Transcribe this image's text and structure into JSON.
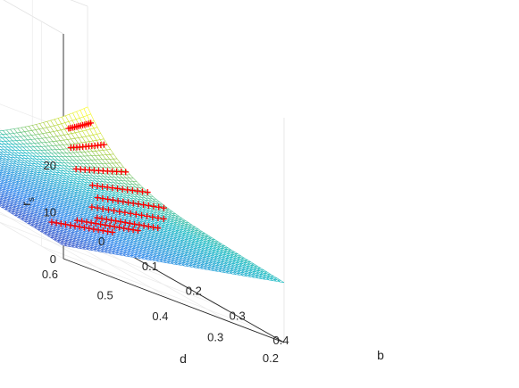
{
  "chart_data": {
    "type": "surface3d",
    "title": "",
    "xlabel": "d",
    "ylabel": "b",
    "zlabel_main": "r",
    "zlabel_sub": "s",
    "x_ticks": [
      "0.2",
      "0.3",
      "0.4",
      "0.5",
      "0.6"
    ],
    "x_tick_values": [
      0.2,
      0.3,
      0.4,
      0.5,
      0.6
    ],
    "y_ticks": [
      "0",
      "0.1",
      "0.2",
      "0.3",
      "0.4"
    ],
    "y_tick_values": [
      0,
      0.1,
      0.2,
      0.3,
      0.4
    ],
    "z_ticks": [
      "0",
      "10",
      "20"
    ],
    "z_tick_values": [
      0,
      10,
      20
    ],
    "xlim": [
      0.2,
      0.6
    ],
    "ylim": [
      0,
      0.45
    ],
    "zlim": [
      0,
      25
    ],
    "grid": true,
    "surface_colormap": "parula-like (blue low, yellow high)",
    "marker": {
      "symbol": "+",
      "color": "#ff0000"
    },
    "marker_series": [
      {
        "x_start": 0.55,
        "x_end": 0.44,
        "y": 0.36,
        "count": 14
      },
      {
        "x_start": 0.48,
        "x_end": 0.37,
        "y": 0.33,
        "count": 14
      },
      {
        "x_start": 0.42,
        "x_end": 0.31,
        "y": 0.3,
        "count": 14
      },
      {
        "x_start": 0.39,
        "x_end": 0.26,
        "y": 0.25,
        "count": 14
      },
      {
        "x_start": 0.34,
        "x_end": 0.22,
        "y": 0.2,
        "count": 14
      },
      {
        "x_start": 0.31,
        "x_end": 0.21,
        "y": 0.15,
        "count": 12
      },
      {
        "x_start": 0.3,
        "x_end": 0.21,
        "y": 0.1,
        "count": 12
      },
      {
        "x_start": 0.27,
        "x_end": 0.21,
        "y": 0.05,
        "count": 12
      },
      {
        "x_start": 0.25,
        "x_end": 0.21,
        "y": 0.02,
        "count": 12
      }
    ]
  }
}
